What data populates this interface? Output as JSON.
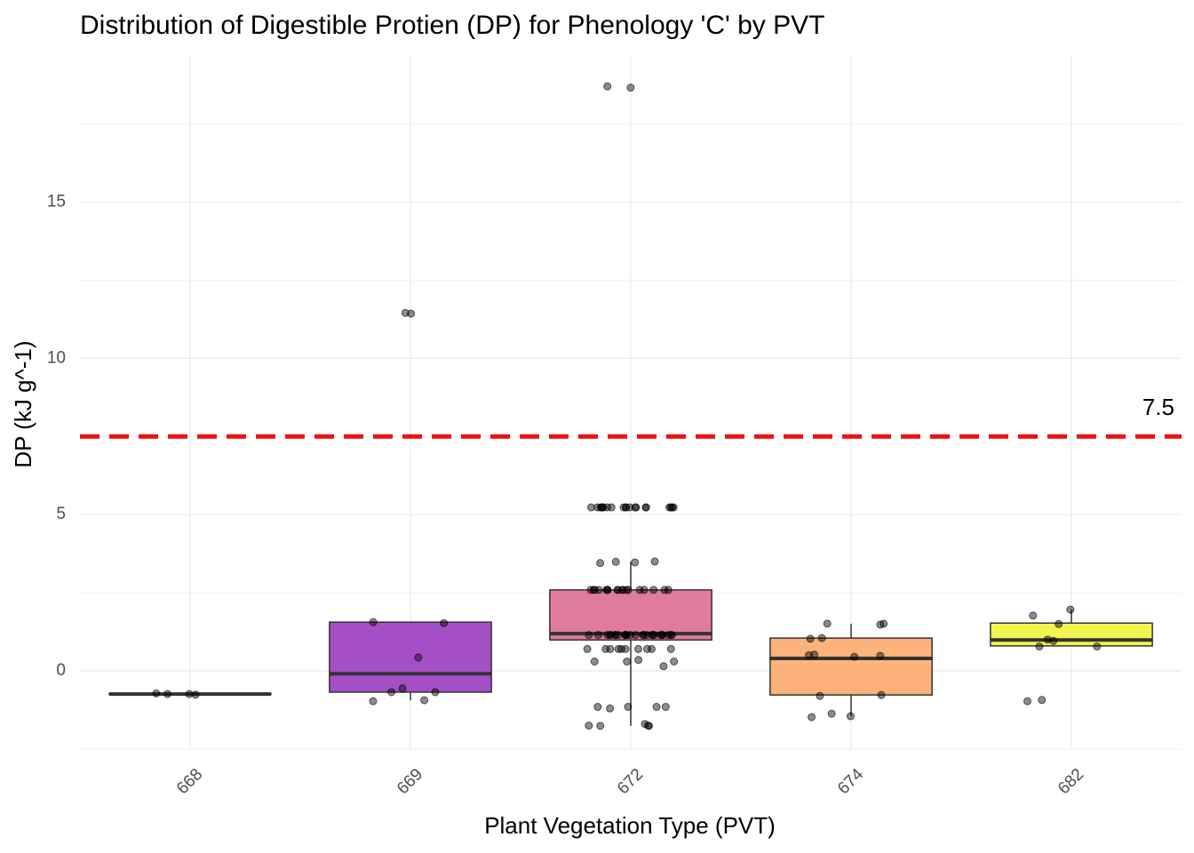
{
  "chart_data": {
    "type": "box",
    "title": "Distribution of Digestible Protien (DP) for Phenology 'C' by PVT",
    "x_label": "Plant Vegetation Type (PVT)",
    "y_label": "DP (kJ g^-1)",
    "categories": [
      "668",
      "669",
      "672",
      "674",
      "682"
    ],
    "boxes": [
      {
        "whislo": -0.74,
        "q1": -0.74,
        "median": -0.74,
        "q3": -0.74,
        "whishi": -0.74,
        "color": "#2a2a6e"
      },
      {
        "whislo": -0.94,
        "q1": -0.68,
        "median": -0.09,
        "q3": 1.56,
        "whishi": 1.56,
        "color": "#a44fc6"
      },
      {
        "whislo": -1.76,
        "q1": 0.99,
        "median": 1.19,
        "q3": 2.59,
        "whishi": 3.49,
        "color": "#de7b9f"
      },
      {
        "whislo": -1.45,
        "q1": -0.77,
        "median": 0.4,
        "q3": 1.05,
        "whishi": 1.51,
        "color": "#fbb27b"
      },
      {
        "whislo": 0.8,
        "q1": 0.8,
        "median": 0.99,
        "q3": 1.53,
        "whishi": 1.96,
        "color": "#f1f550"
      }
    ],
    "points": [
      [
        -0.74,
        -0.76,
        -0.72,
        -0.74
      ],
      [
        11.45,
        11.43,
        1.56,
        1.53,
        0.43,
        -0.56,
        -0.68,
        -0.68,
        -0.94,
        -0.97
      ],
      [
        18.66,
        18.7,
        5.23,
        5.23,
        5.23,
        5.23,
        5.23,
        5.23,
        5.23,
        5.23,
        5.23,
        5.23,
        5.23,
        5.23,
        5.23,
        5.23,
        5.23,
        5.23,
        5.23,
        5.23,
        5.23,
        5.23,
        3.47,
        3.49,
        3.45,
        3.5,
        2.59,
        2.59,
        2.59,
        2.59,
        2.59,
        2.59,
        2.59,
        2.59,
        2.59,
        2.59,
        2.59,
        2.59,
        2.59,
        2.59,
        2.59,
        2.59,
        2.59,
        2.59,
        1.15,
        1.15,
        1.15,
        1.15,
        1.15,
        1.15,
        1.15,
        1.15,
        1.15,
        1.15,
        1.15,
        1.15,
        1.15,
        1.15,
        1.15,
        1.15,
        1.15,
        1.15,
        1.15,
        1.15,
        1.15,
        1.15,
        1.15,
        1.15,
        1.15,
        1.15,
        0.7,
        0.7,
        0.7,
        0.7,
        0.7,
        0.7,
        0.7,
        0.7,
        0.7,
        0.7,
        0.3,
        0.3,
        0.3,
        0.15,
        0.35,
        -1.15,
        -1.15,
        -1.15,
        -1.15,
        -1.2,
        -1.75,
        -1.76,
        -1.76,
        -1.75,
        -1.7
      ],
      [
        1.51,
        1.51,
        1.48,
        1.05,
        1.03,
        0.52,
        0.5,
        0.45,
        0.48,
        -0.77,
        -0.8,
        -1.45,
        -1.48,
        -1.37
      ],
      [
        1.96,
        1.77,
        1.5,
        1.0,
        0.96,
        0.78,
        0.78,
        -0.93,
        -0.97
      ]
    ],
    "threshold": 7.5,
    "threshold_color": "#ee1111",
    "ylim": [
      -2.5,
      19.7
    ],
    "yticks": [
      0,
      5,
      10,
      15
    ],
    "grid": true
  }
}
